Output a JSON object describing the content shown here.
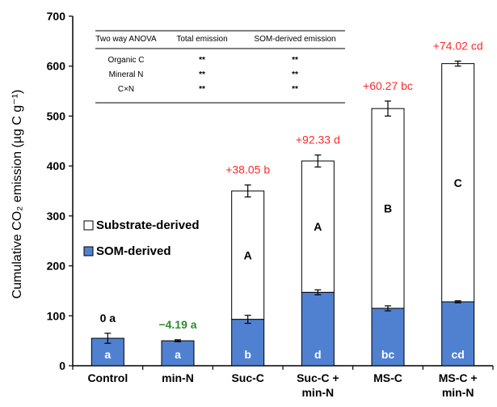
{
  "chart_data": {
    "type": "bar",
    "stacked": true,
    "ylabel": "Cumulative CO₂ emission  (µg C g⁻¹)",
    "ylim": [
      0,
      700
    ],
    "yticks": [
      "0",
      "100",
      "200",
      "300",
      "400",
      "500",
      "600",
      "700"
    ],
    "categories": [
      {
        "line1": "Control",
        "line2": ""
      },
      {
        "line1": "min-N",
        "line2": ""
      },
      {
        "line1": "Suc-C",
        "line2": ""
      },
      {
        "line1": "Suc-C +",
        "line2": "min-N"
      },
      {
        "line1": "MS-C",
        "line2": ""
      },
      {
        "line1": "MS-C +",
        "line2": "min-N"
      }
    ],
    "series": [
      {
        "name": "SOM-derived",
        "color": "#4f81d0",
        "values": [
          55,
          50,
          93,
          147,
          115,
          128
        ],
        "errors": [
          10,
          2,
          8,
          5,
          5,
          2
        ],
        "letters": [
          "a",
          "a",
          "b",
          "d",
          "bc",
          "cd"
        ]
      },
      {
        "name": "Substrate-derived",
        "color": "#ffffff",
        "values": [
          0,
          0,
          257,
          263,
          400,
          477
        ],
        "errors": [
          0,
          0,
          12,
          12,
          15,
          5
        ],
        "letters": [
          "",
          "",
          "A",
          "A",
          "B",
          "C"
        ]
      }
    ],
    "diff_labels": [
      {
        "text": "0 a",
        "color": "#000000"
      },
      {
        "text": "−4.19 a",
        "color": "#2e8b2e"
      },
      {
        "text": "+38.05 b",
        "color": "#ff2a2a"
      },
      {
        "text": "+92.33 d",
        "color": "#ff2a2a"
      },
      {
        "text": "+60.27 bc",
        "color": "#ff2a2a"
      },
      {
        "text": "+74.02 cd",
        "color": "#ff2a2a"
      }
    ],
    "legend": {
      "placement": "left-middle",
      "items": [
        "Substrate-derived",
        "SOM-derived"
      ]
    },
    "anova_table": {
      "headers": [
        "Two way ANOVA",
        "Total emission",
        "SOM-derived emission"
      ],
      "rows": [
        [
          "Organic C",
          "**",
          "**"
        ],
        [
          "Mineral N",
          "**",
          "**"
        ],
        [
          "C×N",
          "**",
          "**"
        ]
      ]
    },
    "grid": false
  }
}
